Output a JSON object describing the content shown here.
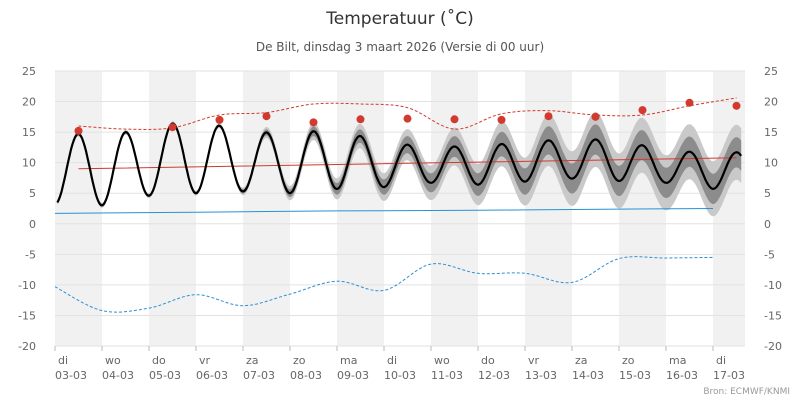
{
  "chart_data": {
    "type": "line",
    "title": "Temperatuur (˚C)",
    "subtitle": "De Bilt, dinsdag 3 maart 2026 (Versie di 00 uur)",
    "credit": "Bron: ECMWF/KNMI",
    "ylim": [
      -20,
      25
    ],
    "yticks": [
      25,
      20,
      15,
      10,
      5,
      0,
      -5,
      -10,
      -15,
      -20
    ],
    "days": [
      {
        "day": "di",
        "date": "03-03"
      },
      {
        "day": "wo",
        "date": "04-03"
      },
      {
        "day": "do",
        "date": "05-03"
      },
      {
        "day": "vr",
        "date": "06-03"
      },
      {
        "day": "za",
        "date": "07-03"
      },
      {
        "day": "zo",
        "date": "08-03"
      },
      {
        "day": "ma",
        "date": "09-03"
      },
      {
        "day": "di",
        "date": "10-03"
      },
      {
        "day": "wo",
        "date": "11-03"
      },
      {
        "day": "do",
        "date": "12-03"
      },
      {
        "day": "vr",
        "date": "13-03"
      },
      {
        "day": "za",
        "date": "14-03"
      },
      {
        "day": "zo",
        "date": "15-03"
      },
      {
        "day": "ma",
        "date": "16-03"
      },
      {
        "day": "di",
        "date": "17-03"
      }
    ],
    "daily_max": [
      {
        "day": 0.5,
        "value": 15.2
      },
      {
        "day": 2.5,
        "value": 15.8
      },
      {
        "day": 3.5,
        "value": 17.0
      },
      {
        "day": 4.5,
        "value": 17.6
      },
      {
        "day": 5.5,
        "value": 16.6
      },
      {
        "day": 6.5,
        "value": 17.1
      },
      {
        "day": 7.5,
        "value": 17.2
      },
      {
        "day": 8.5,
        "value": 17.1
      },
      {
        "day": 9.5,
        "value": 17.0
      },
      {
        "day": 10.5,
        "value": 17.6
      },
      {
        "day": 11.5,
        "value": 17.5
      },
      {
        "day": 12.5,
        "value": 18.6
      },
      {
        "day": 13.5,
        "value": 19.8
      },
      {
        "day": 14.5,
        "value": 19.3
      }
    ],
    "series": [
      {
        "role": "record-high",
        "color": "#d13a2e",
        "style": "dashed",
        "points": [
          [
            0.5,
            16.0
          ],
          [
            1.5,
            15.5
          ],
          [
            2.5,
            15.7
          ],
          [
            3.5,
            17.8
          ],
          [
            4.5,
            18.2
          ],
          [
            5.5,
            19.6
          ],
          [
            6.5,
            19.6
          ],
          [
            7.5,
            19.0
          ],
          [
            8.5,
            15.5
          ],
          [
            9.5,
            18.0
          ],
          [
            10.5,
            18.5
          ],
          [
            11.5,
            17.8
          ],
          [
            12.5,
            17.8
          ],
          [
            13.5,
            19.3
          ],
          [
            14.5,
            20.6
          ]
        ]
      },
      {
        "role": "normal-max",
        "color": "#d13a2e",
        "style": "solid",
        "points": [
          [
            0.5,
            9.0
          ],
          [
            14.5,
            10.8
          ]
        ]
      },
      {
        "role": "normal-min",
        "color": "#2b8fd6",
        "style": "solid",
        "points": [
          [
            0.0,
            1.7
          ],
          [
            3.0,
            1.9
          ],
          [
            6.0,
            2.1
          ],
          [
            9.0,
            2.2
          ],
          [
            12.0,
            2.4
          ],
          [
            14.0,
            2.5
          ]
        ]
      },
      {
        "role": "record-low",
        "color": "#2b8fd6",
        "style": "dashed",
        "points": [
          [
            0.0,
            -10.3
          ],
          [
            1.0,
            -14.2
          ],
          [
            2.0,
            -13.8
          ],
          [
            3.0,
            -11.6
          ],
          [
            4.0,
            -13.4
          ],
          [
            5.0,
            -11.5
          ],
          [
            6.0,
            -9.4
          ],
          [
            7.0,
            -10.9
          ],
          [
            8.0,
            -6.6
          ],
          [
            9.0,
            -8.1
          ],
          [
            10.0,
            -8.1
          ],
          [
            11.0,
            -9.6
          ],
          [
            12.0,
            -5.7
          ],
          [
            13.0,
            -5.6
          ],
          [
            14.0,
            -5.5
          ]
        ]
      },
      {
        "role": "forecast",
        "color": "#000000",
        "style": "solid",
        "amplitude": [
          6.0,
          5.6,
          5.6,
          6.0,
          4.9,
          4.9,
          4.9,
          3.6,
          3.0,
          3.1,
          3.3,
          3.2,
          3.4,
          2.6,
          3.0
        ],
        "mean": [
          9.2,
          8.6,
          10.2,
          11.0,
          10.2,
          9.9,
          10.6,
          9.6,
          9.7,
          9.5,
          10.2,
          10.6,
          10.4,
          9.3,
          8.7
        ]
      }
    ]
  }
}
